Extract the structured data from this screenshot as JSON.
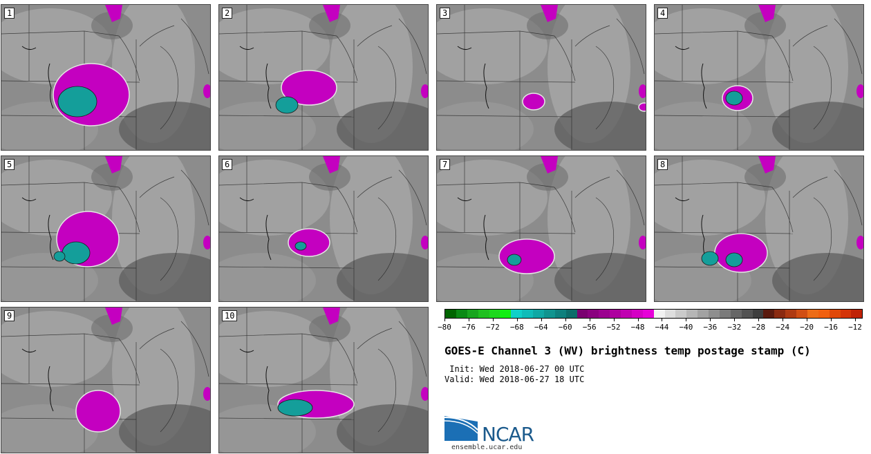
{
  "panels": [
    {
      "label": "1",
      "blob": "large-teal-west"
    },
    {
      "label": "2",
      "blob": "teal-west-small"
    },
    {
      "label": "3",
      "blob": "small-magenta"
    },
    {
      "label": "4",
      "blob": "compact-teal"
    },
    {
      "label": "5",
      "blob": "teal-magenta-spread"
    },
    {
      "label": "6",
      "blob": "magenta-center"
    },
    {
      "label": "7",
      "blob": "magenta-south"
    },
    {
      "label": "8",
      "blob": "double-teal"
    },
    {
      "label": "9",
      "blob": "magenta-southeast"
    },
    {
      "label": "10",
      "blob": "teal-band"
    }
  ],
  "colorbar": {
    "colors": [
      "#006400",
      "#0a8a14",
      "#18a51e",
      "#20c020",
      "#1ed81e",
      "#12ee12",
      "#10d0c8",
      "#10bcb8",
      "#10a8a4",
      "#10948f",
      "#0e807d",
      "#0c6c69",
      "#7a0070",
      "#8a007f",
      "#9b008f",
      "#ae009f",
      "#c000b1",
      "#d400c4",
      "#e600d8",
      "#f2f2f2",
      "#dedede",
      "#cacaca",
      "#b6b6b6",
      "#a2a2a2",
      "#8e8e8e",
      "#7a7a7a",
      "#666666",
      "#525252",
      "#3e3e3e",
      "#5a1a0e",
      "#8a2a10",
      "#ae3a12",
      "#d04e14",
      "#ec6c18",
      "#f06010",
      "#e04808",
      "#d43408",
      "#c02206"
    ],
    "tick_labels": [
      "−80",
      "−76",
      "−72",
      "−68",
      "−64",
      "−60",
      "−56",
      "−52",
      "−48",
      "−44",
      "−40",
      "−36",
      "−32",
      "−28",
      "−24",
      "−20",
      "−16",
      "−12"
    ]
  },
  "title": "GOES-E Channel 3 (WV) brightness temp postage stamp (C)",
  "init": " Init: Wed 2018-06-27 00 UTC",
  "valid": "Valid: Wed 2018-06-27 18 UTC",
  "logo": {
    "name": "NCAR",
    "url": "ensemble.ucar.edu"
  },
  "colors": {
    "teal": "#149e9a",
    "magenta": "#c400c0",
    "outline": "#1a1a1a",
    "map_bg": "#8c8c8c"
  }
}
